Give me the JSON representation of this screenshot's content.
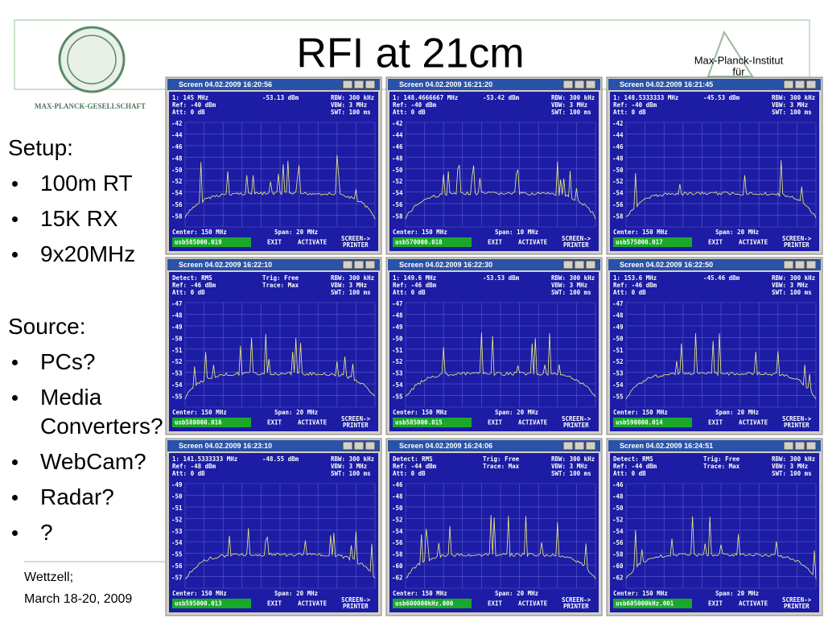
{
  "header": {
    "title": "RFI at 21cm",
    "left_logo": "MAX-PLANCK-GESELLSCHAFT",
    "right_logo": [
      "Max-Planck-Institut",
      "für"
    ]
  },
  "setup": {
    "heading": "Setup:",
    "items": [
      "100m RT",
      "15K RX",
      "9x20MHz"
    ]
  },
  "source": {
    "heading": "Source:",
    "items": [
      "PCs?",
      "Media Converters?",
      "WebCam?",
      "Radar?",
      "?"
    ]
  },
  "footer": [
    "Wettzell;",
    "March 18-20, 2009"
  ],
  "buttons": [
    "EXIT",
    "ACTIVATE",
    "SCREEN->",
    "PRINTER"
  ],
  "windows": [
    {
      "title": "Screen 04.02.2009 16:20:56",
      "left": [
        "1: 145 MHz",
        "Ref: -40 dBm",
        "Att: 0 dB"
      ],
      "mid": [
        "-53.13 dBm"
      ],
      "right": [
        "RBW: 300 kHz",
        "VBW: 3 MHz",
        "SWT: 100 ms"
      ],
      "yticks": [
        "-42",
        "-44",
        "-46",
        "-48",
        "-50",
        "-52",
        "-54",
        "-56",
        "-58"
      ],
      "center": "Center: 150 MHz",
      "span": "Span: 20 MHz",
      "file": "usb585000.019"
    },
    {
      "title": "Screen 04.02.2009 16:21:20",
      "left": [
        "1: 148.4666667 MHz",
        "Ref: -40 dBm",
        "Att: 0 dB"
      ],
      "mid": [
        "-53.42 dBm"
      ],
      "right": [
        "RBW: 300 kHz",
        "VBW: 3 MHz",
        "SWT: 100 ms"
      ],
      "yticks": [
        "-42",
        "-44",
        "-46",
        "-48",
        "-50",
        "-52",
        "-54",
        "-56",
        "-58"
      ],
      "center": "Center: 150 MHz",
      "span": "Span: 10 MHz",
      "file": "usb570000.018"
    },
    {
      "title": "Screen 04.02.2009 16:21:45",
      "left": [
        "1: 148.5333333 MHz",
        "Ref: -40 dBm",
        "Att: 0 dB"
      ],
      "mid": [
        "-45.53 dBm"
      ],
      "right": [
        "RBW: 300 kHz",
        "VBW: 3 MHz",
        "SWT: 100 ms"
      ],
      "yticks": [
        "-42",
        "-44",
        "-46",
        "-48",
        "-50",
        "-52",
        "-54",
        "-56",
        "-58"
      ],
      "center": "Center: 150 MHz",
      "span": "Span: 20 MHz",
      "file": "usb575000.017"
    },
    {
      "title": "Screen 04.02.2009 16:22:10",
      "left": [
        "Detect: RMS",
        "Ref: -46 dBm",
        "Att: 0 dB"
      ],
      "mid": [
        "Trig: Free",
        "Trace: Max"
      ],
      "right": [
        "RBW: 300 kHz",
        "VBW: 3 MHz",
        "SWT: 100 ms"
      ],
      "yticks": [
        "-47",
        "-48",
        "-49",
        "-50",
        "-51",
        "-52",
        "-53",
        "-54",
        "-55"
      ],
      "center": "Center: 150 MHz",
      "span": "Span: 20 MHz",
      "file": "usb580000.016"
    },
    {
      "title": "Screen 04.02.2009 16:22:30",
      "left": [
        "1: 149.6 MHz",
        "Ref: -46 dBm",
        "Att: 0 dB"
      ],
      "mid": [
        "-53.53 dBm"
      ],
      "right": [
        "RBW: 300 kHz",
        "VBW: 3 MHz",
        "SWT: 100 ms"
      ],
      "yticks": [
        "-47",
        "-48",
        "-49",
        "-50",
        "-51",
        "-52",
        "-53",
        "-54",
        "-55"
      ],
      "center": "Center: 150 MHz",
      "span": "Span: 20 MHz",
      "file": "usb585000.015"
    },
    {
      "title": "Screen 04.02.2009 16:22:50",
      "left": [
        "1: 153.6 MHz",
        "Ref: -46 dBm",
        "Att: 0 dB"
      ],
      "mid": [
        "-45.46 dBm"
      ],
      "right": [
        "RBW: 300 kHz",
        "VBW: 3 MHz",
        "SWT: 100 ms"
      ],
      "yticks": [
        "-47",
        "-48",
        "-49",
        "-50",
        "-51",
        "-52",
        "-53",
        "-54",
        "-55"
      ],
      "center": "Center: 150 MHz",
      "span": "Span: 20 MHz",
      "file": "usb590000.014"
    },
    {
      "title": "Screen 04.02.2009 16:23:10",
      "left": [
        "1: 141.5333333 MHz",
        "Ref: -48 dBm",
        "Att: 0 dB"
      ],
      "mid": [
        "-48.55 dBm"
      ],
      "right": [
        "RBW: 300 kHz",
        "VBW: 3 MHz",
        "SWT: 100 ms"
      ],
      "yticks": [
        "-49",
        "-50",
        "-51",
        "-52",
        "-53",
        "-54",
        "-55",
        "-56",
        "-57"
      ],
      "center": "Center: 150 MHz",
      "span": "Span: 20 MHz",
      "file": "usb595000.013"
    },
    {
      "title": "Screen 04.02.2009 16:24:06",
      "left": [
        "Detect: RMS",
        "Ref: -44 dBm",
        "Att: 0 dB"
      ],
      "mid": [
        "Trig: Free",
        "Trace: Max"
      ],
      "right": [
        "RBW: 300 kHz",
        "VBW: 3 MHz",
        "SWT: 100 ms"
      ],
      "yticks": [
        "-46",
        "-48",
        "-50",
        "-52",
        "-54",
        "-56",
        "-58",
        "-60",
        "-62"
      ],
      "center": "Center: 150 MHz",
      "span": "Span: 20 MHz",
      "file": "usb600000kHz.000"
    },
    {
      "title": "Screen 04.02.2009 16:24:51",
      "left": [
        "Detect: RMS",
        "Ref: -44 dBm",
        "Att: 0 dB"
      ],
      "mid": [
        "Trig: Free",
        "Trace: Max"
      ],
      "right": [
        "RBW: 300 kHz",
        "VBW: 3 MHz",
        "SWT: 100 ms"
      ],
      "yticks": [
        "-46",
        "-48",
        "-50",
        "-52",
        "-54",
        "-56",
        "-58",
        "-60",
        "-62"
      ],
      "center": "Center: 150 MHz",
      "span": "Span: 20 MHz",
      "file": "usb605000kHz.001"
    }
  ]
}
